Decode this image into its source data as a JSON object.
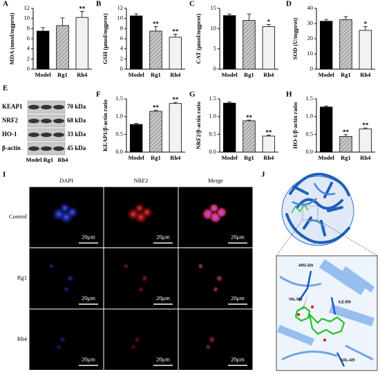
{
  "chart_data": [
    {
      "type": "bar",
      "panel": "A",
      "ylabel": "MDA (nmol/mgprot)",
      "categories": [
        "Model",
        "Rg1",
        "Rh4"
      ],
      "values": [
        7.5,
        8.6,
        10.2
      ],
      "errors": [
        0.7,
        1.5,
        1.2
      ],
      "annotations": [
        null,
        null,
        "**"
      ],
      "colors": [
        "#000000",
        "#b5b5b5",
        "#f2f2f2"
      ],
      "hatched": [
        false,
        true,
        false
      ],
      "ylim": [
        0,
        12
      ],
      "yticks": [
        0,
        2,
        4,
        6,
        8,
        10,
        12
      ]
    },
    {
      "type": "bar",
      "panel": "B",
      "ylabel": "GSH (μmol/mgprot)",
      "categories": [
        "Model",
        "Rg1",
        "Rh4"
      ],
      "values": [
        10.5,
        7.5,
        6.3
      ],
      "errors": [
        0.4,
        0.9,
        0.6
      ],
      "annotations": [
        null,
        "**",
        "**"
      ],
      "colors": [
        "#000000",
        "#b5b5b5",
        "#f2f2f2"
      ],
      "hatched": [
        false,
        true,
        false
      ],
      "ylim": [
        0,
        12
      ],
      "yticks": [
        0,
        2,
        4,
        6,
        8,
        10,
        12
      ]
    },
    {
      "type": "bar",
      "panel": "C",
      "ylabel": "CAT (μmol/mgprot)",
      "categories": [
        "Model",
        "Rg1",
        "Rh4"
      ],
      "values": [
        13.2,
        12.0,
        10.5
      ],
      "errors": [
        0.4,
        1.6,
        0.5
      ],
      "annotations": [
        null,
        null,
        "*"
      ],
      "colors": [
        "#000000",
        "#b5b5b5",
        "#f2f2f2"
      ],
      "hatched": [
        false,
        true,
        false
      ],
      "ylim": [
        0,
        15
      ],
      "yticks": [
        0,
        5,
        10,
        15
      ]
    },
    {
      "type": "bar",
      "panel": "D",
      "ylabel": "SOD (U/mgprot)",
      "categories": [
        "Model",
        "Rg1",
        "Rh4"
      ],
      "values": [
        31.5,
        32.5,
        25.5
      ],
      "errors": [
        1.2,
        2.0,
        2.5
      ],
      "annotations": [
        null,
        null,
        "*"
      ],
      "colors": [
        "#000000",
        "#b5b5b5",
        "#f2f2f2"
      ],
      "hatched": [
        false,
        true,
        false
      ],
      "ylim": [
        0,
        40
      ],
      "yticks": [
        0,
        10,
        20,
        30,
        40
      ]
    },
    {
      "type": "bar",
      "panel": "F",
      "ylabel": "KEAP1/β-actin ratio",
      "categories": [
        "Model",
        "Rg1",
        "Rh4"
      ],
      "values": [
        0.78,
        1.15,
        1.37
      ],
      "errors": [
        0.03,
        0.03,
        0.03
      ],
      "annotations": [
        null,
        "**",
        "**"
      ],
      "colors": [
        "#000000",
        "#b5b5b5",
        "#f2f2f2"
      ],
      "hatched": [
        false,
        true,
        false
      ],
      "ylim": [
        0,
        1.5
      ],
      "yticks": [
        {
          "value": 0,
          "label": "0.0"
        },
        {
          "value": 0.5,
          "label": "0.5"
        },
        {
          "value": 1,
          "label": "1.0"
        },
        {
          "value": 1.5,
          "label": "1.5"
        }
      ]
    },
    {
      "type": "bar",
      "panel": "G",
      "ylabel": "NRF2/β-actin ratio",
      "categories": [
        "Model",
        "Rg1",
        "Rh4"
      ],
      "values": [
        1.38,
        0.88,
        0.45
      ],
      "errors": [
        0.03,
        0.02,
        0.03
      ],
      "annotations": [
        null,
        "**",
        "**"
      ],
      "colors": [
        "#000000",
        "#b5b5b5",
        "#f2f2f2"
      ],
      "hatched": [
        false,
        true,
        false
      ],
      "ylim": [
        0,
        1.5
      ],
      "yticks": [
        {
          "value": 0,
          "label": "0.0"
        },
        {
          "value": 0.5,
          "label": "0.5"
        },
        {
          "value": 1,
          "label": "1.0"
        },
        {
          "value": 1.5,
          "label": "1.5"
        }
      ]
    },
    {
      "type": "bar",
      "panel": "H",
      "ylabel": "HO-1/β-actin ratio",
      "categories": [
        "Model",
        "Rg1",
        "Rh4"
      ],
      "values": [
        1.27,
        0.44,
        0.65
      ],
      "errors": [
        0.03,
        0.05,
        0.03
      ],
      "annotations": [
        null,
        "**",
        "**"
      ],
      "colors": [
        "#000000",
        "#b5b5b5",
        "#f2f2f2"
      ],
      "hatched": [
        false,
        true,
        false
      ],
      "ylim": [
        0,
        1.5
      ],
      "yticks": [
        {
          "value": 0,
          "label": "0.0"
        },
        {
          "value": 0.5,
          "label": "0.5"
        },
        {
          "value": 1,
          "label": "1.0"
        },
        {
          "value": 1.5,
          "label": "1.5"
        }
      ]
    }
  ],
  "blot": {
    "panel": "E",
    "proteins": [
      "KEAP1",
      "NRF2",
      "HO-1",
      "β-actin"
    ],
    "sizes": [
      "70 kDa",
      "68 kDa",
      "33 kDa",
      "45 kDa"
    ],
    "lanes": [
      "Model",
      "Rg1",
      "Rh4"
    ]
  },
  "microscopy": {
    "panel": "I",
    "columns": [
      "DAPI",
      "NRF2",
      "Merge"
    ],
    "rows": [
      "Control",
      "Rg1",
      "Rh4"
    ],
    "scale_bar": "20μm"
  },
  "docking": {
    "panel": "J",
    "residues": [
      "ARG-326",
      "VAL-561",
      "ILE-559",
      "VAL-420"
    ]
  }
}
